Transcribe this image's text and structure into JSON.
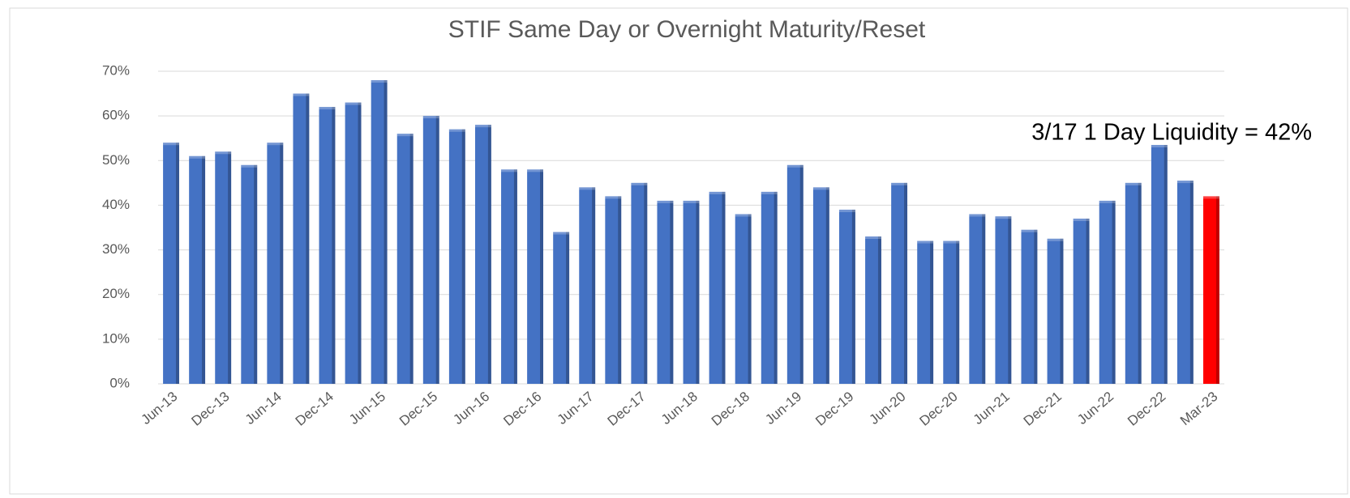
{
  "chart_data": {
    "type": "bar",
    "title": "STIF Same Day or Overnight Maturity/Reset",
    "annotation": "3/17 1 Day Liquidity = 42%",
    "categories": [
      "Jun-13",
      null,
      "Dec-13",
      null,
      "Jun-14",
      null,
      "Dec-14",
      null,
      "Jun-15",
      null,
      "Dec-15",
      null,
      "Jun-16",
      null,
      "Dec-16",
      null,
      "Jun-17",
      null,
      "Dec-17",
      null,
      "Jun-18",
      null,
      "Dec-18",
      null,
      "Jun-19",
      null,
      "Dec-19",
      null,
      "Jun-20",
      null,
      "Dec-20",
      null,
      "Jun-21",
      null,
      "Dec-21",
      null,
      "Jun-22",
      null,
      "Dec-22",
      null,
      "Mar-23"
    ],
    "values": [
      54,
      51,
      52,
      49,
      54,
      65,
      62,
      63,
      68,
      56,
      60,
      57,
      58,
      48,
      48,
      34,
      44,
      42,
      45,
      41,
      41,
      43,
      38,
      43,
      49,
      44,
      39,
      33,
      45,
      32,
      32,
      38,
      37.5,
      34.5,
      32.5,
      37,
      41,
      45,
      53.5,
      45.5,
      42
    ],
    "colors": [
      "#4472c4",
      "#4472c4",
      "#4472c4",
      "#4472c4",
      "#4472c4",
      "#4472c4",
      "#4472c4",
      "#4472c4",
      "#4472c4",
      "#4472c4",
      "#4472c4",
      "#4472c4",
      "#4472c4",
      "#4472c4",
      "#4472c4",
      "#4472c4",
      "#4472c4",
      "#4472c4",
      "#4472c4",
      "#4472c4",
      "#4472c4",
      "#4472c4",
      "#4472c4",
      "#4472c4",
      "#4472c4",
      "#4472c4",
      "#4472c4",
      "#4472c4",
      "#4472c4",
      "#4472c4",
      "#4472c4",
      "#4472c4",
      "#4472c4",
      "#4472c4",
      "#4472c4",
      "#4472c4",
      "#4472c4",
      "#4472c4",
      "#4472c4",
      "#4472c4",
      "#ff0000"
    ],
    "ylim": [
      0,
      70
    ],
    "yticks": [
      {
        "value": 0,
        "label": "0%"
      },
      {
        "value": 10,
        "label": "10%"
      },
      {
        "value": 20,
        "label": "20%"
      },
      {
        "value": 30,
        "label": "30%"
      },
      {
        "value": 40,
        "label": "40%"
      },
      {
        "value": 50,
        "label": "50%"
      },
      {
        "value": 60,
        "label": "60%"
      },
      {
        "value": 70,
        "label": "70%"
      }
    ],
    "grid": true
  }
}
